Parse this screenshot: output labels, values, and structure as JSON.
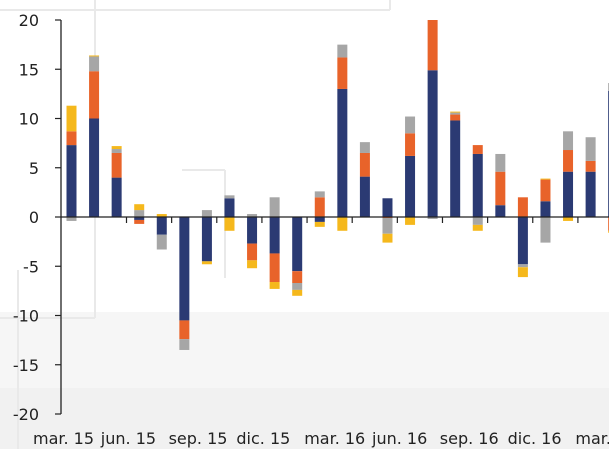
{
  "chart_data": {
    "type": "bar",
    "stacked": true,
    "ylim": [
      -20,
      20
    ],
    "yticks": [
      "20",
      "15",
      "10",
      "5",
      "0",
      "-5",
      "-10",
      "-15",
      "-20"
    ],
    "xticks": [
      "mar. 15",
      "jun. 15",
      "sep. 15",
      "dic. 15",
      "mar. 16",
      "jun. 16",
      "sep. 16",
      "dic. 16",
      "mar."
    ],
    "grid": false,
    "colors": [
      "#2b3a73",
      "#e8632a",
      "#a6a6a6",
      "#f5b81c"
    ],
    "series": [
      {
        "values": [
          7.3,
          10.0,
          4.0,
          -0.3,
          -1.8,
          -10.5,
          -4.5,
          1.9,
          -2.7,
          -3.7,
          -5.5,
          -0.5,
          13.0,
          4.1,
          1.9,
          6.2,
          14.9,
          9.8,
          6.4,
          1.2,
          -4.8,
          1.6,
          4.6,
          4.6,
          12.8
        ]
      },
      {
        "values": [
          1.4,
          4.8,
          2.5,
          -0.4,
          0,
          -1.9,
          0,
          0,
          -1.7,
          -2.9,
          -1.2,
          2.0,
          3.2,
          2.4,
          -0.1,
          2.3,
          5.1,
          0.6,
          0.9,
          3.4,
          2.0,
          2.2,
          2.2,
          1.1,
          -1.4
        ]
      },
      {
        "values": [
          -0.4,
          1.5,
          0.4,
          0.7,
          -1.5,
          -1.1,
          0.7,
          0.3,
          0.3,
          2.0,
          -0.7,
          0.6,
          1.3,
          1.1,
          -1.6,
          1.7,
          -0.2,
          0.2,
          -0.8,
          1.8,
          -0.3,
          -2.6,
          1.9,
          2.4,
          0.8
        ]
      },
      {
        "values": [
          2.6,
          0.1,
          0.3,
          0.6,
          0.3,
          0,
          -0.3,
          -1.4,
          -0.8,
          -0.7,
          -0.6,
          -0.5,
          -1.4,
          0,
          -0.9,
          -0.8,
          0,
          0.1,
          -0.6,
          0,
          -1.0,
          0.1,
          -0.4,
          0,
          -0.2
        ]
      }
    ]
  }
}
